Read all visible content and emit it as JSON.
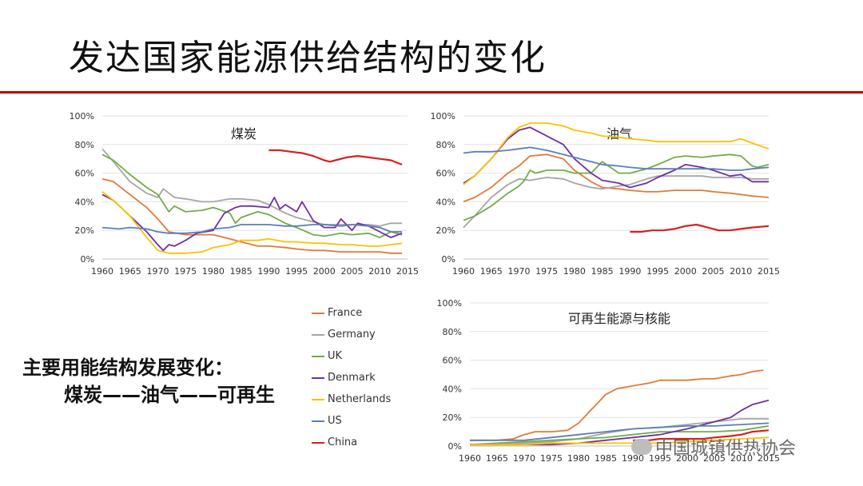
{
  "title": "发达国家能源供给结构的变化",
  "summary": {
    "line1": "主要用能结构发展变化：",
    "line2": "煤炭——油气——可再生"
  },
  "watermark_text": "中国城镇供热协会",
  "colors": {
    "France": "#e07b39",
    "Germany": "#a5a5a5",
    "UK": "#70ad47",
    "Denmark": "#7030a0",
    "Netherlands": "#ffc000",
    "US": "#5b7fb8",
    "China": "#d62020"
  },
  "legend": [
    "France",
    "Germany",
    "UK",
    "Denmark",
    "Netherlands",
    "US",
    "China"
  ],
  "chart_data": [
    {
      "type": "line",
      "title": "煤炭",
      "ylim": [
        0,
        100
      ],
      "y_ticks": [
        "0%",
        "20%",
        "40%",
        "60%",
        "80%",
        "100%"
      ],
      "x_ticks": [
        "1960",
        "1965",
        "1970",
        "1975",
        "1980",
        "1985",
        "1990",
        "1995",
        "2000",
        "2005",
        "2010",
        "2015"
      ],
      "xlim": [
        1960,
        2015
      ],
      "series": [
        {
          "name": "France",
          "x": [
            1960,
            1962,
            1965,
            1968,
            1970,
            1972,
            1975,
            1978,
            1980,
            1983,
            1985,
            1988,
            1990,
            1993,
            1995,
            1998,
            2000,
            2003,
            2005,
            2008,
            2010,
            2012,
            2014
          ],
          "values": [
            56,
            54,
            45,
            36,
            28,
            19,
            17,
            17,
            17,
            14,
            12,
            9,
            9,
            8,
            7,
            6,
            6,
            5,
            5,
            5,
            5,
            4,
            4
          ]
        },
        {
          "name": "Germany",
          "x": [
            1960,
            1962,
            1965,
            1968,
            1970,
            1971,
            1973,
            1975,
            1978,
            1980,
            1983,
            1985,
            1988,
            1990,
            1993,
            1995,
            1998,
            2000,
            2003,
            2005,
            2008,
            2010,
            2012,
            2014
          ],
          "values": [
            77,
            68,
            54,
            46,
            43,
            49,
            43,
            42,
            40,
            40,
            42,
            42,
            41,
            38,
            32,
            29,
            26,
            24,
            24,
            24,
            24,
            23,
            25,
            25
          ]
        },
        {
          "name": "UK",
          "x": [
            1960,
            1962,
            1965,
            1968,
            1970,
            1972,
            1973,
            1975,
            1978,
            1980,
            1983,
            1984,
            1985,
            1988,
            1990,
            1993,
            1995,
            1998,
            2000,
            2003,
            2005,
            2008,
            2010,
            2012,
            2014
          ],
          "values": [
            73,
            69,
            59,
            50,
            45,
            33,
            37,
            33,
            34,
            36,
            32,
            25,
            29,
            33,
            31,
            25,
            22,
            17,
            16,
            18,
            17,
            18,
            15,
            19,
            17
          ]
        },
        {
          "name": "Denmark",
          "x": [
            1960,
            1962,
            1965,
            1968,
            1970,
            1971,
            1972,
            1973,
            1975,
            1977,
            1980,
            1982,
            1984,
            1985,
            1987,
            1990,
            1991,
            1992,
            1993,
            1995,
            1996,
            1998,
            2000,
            2002,
            2003,
            2005,
            2006,
            2008,
            2010,
            2012,
            2014
          ],
          "values": [
            45,
            41,
            30,
            19,
            10,
            6,
            10,
            9,
            13,
            18,
            20,
            32,
            36,
            37,
            37,
            36,
            43,
            35,
            38,
            33,
            40,
            27,
            22,
            22,
            28,
            20,
            25,
            23,
            19,
            15,
            18
          ]
        },
        {
          "name": "Netherlands",
          "x": [
            1960,
            1962,
            1965,
            1968,
            1970,
            1972,
            1975,
            1978,
            1980,
            1983,
            1985,
            1988,
            1990,
            1993,
            1995,
            1998,
            2000,
            2003,
            2005,
            2008,
            2010,
            2012,
            2014
          ],
          "values": [
            47,
            41,
            30,
            15,
            6,
            4,
            4,
            5,
            8,
            10,
            13,
            13,
            14,
            12,
            12,
            11,
            11,
            10,
            10,
            9,
            9,
            10,
            11
          ]
        },
        {
          "name": "US",
          "x": [
            1960,
            1963,
            1965,
            1968,
            1970,
            1972,
            1975,
            1978,
            1980,
            1983,
            1985,
            1988,
            1990,
            1993,
            1995,
            1998,
            2000,
            2003,
            2005,
            2008,
            2010,
            2012,
            2014
          ],
          "values": [
            22,
            21,
            22,
            21,
            19,
            18,
            18,
            19,
            21,
            22,
            24,
            24,
            24,
            23,
            23,
            24,
            24,
            23,
            24,
            23,
            22,
            19,
            19
          ]
        },
        {
          "name": "China",
          "x": [
            1990,
            1992,
            1994,
            1996,
            1998,
            2000,
            2001,
            2002,
            2004,
            2006,
            2008,
            2010,
            2012,
            2014
          ],
          "values": [
            76,
            76,
            75,
            74,
            72,
            69,
            68,
            69,
            71,
            72,
            71,
            70,
            69,
            66
          ]
        }
      ]
    },
    {
      "type": "line",
      "title": "油气",
      "ylim": [
        0,
        100
      ],
      "y_ticks": [
        "0%",
        "20%",
        "40%",
        "60%",
        "80%",
        "100%"
      ],
      "x_ticks": [
        "1960",
        "1965",
        "1970",
        "1975",
        "1980",
        "1985",
        "1990",
        "1995",
        "2000",
        "2005",
        "2010",
        "2015"
      ],
      "xlim": [
        1960,
        2015
      ],
      "series": [
        {
          "name": "France",
          "x": [
            1960,
            1962,
            1965,
            1968,
            1970,
            1972,
            1975,
            1978,
            1980,
            1983,
            1985,
            1988,
            1990,
            1993,
            1995,
            1998,
            2000,
            2003,
            2005,
            2008,
            2010,
            2012,
            2015
          ],
          "values": [
            40,
            43,
            50,
            60,
            65,
            72,
            73,
            70,
            62,
            54,
            50,
            49,
            48,
            47,
            47,
            48,
            48,
            48,
            47,
            46,
            45,
            44,
            43
          ]
        },
        {
          "name": "Germany",
          "x": [
            1960,
            1962,
            1965,
            1968,
            1970,
            1972,
            1975,
            1978,
            1980,
            1983,
            1985,
            1988,
            1990,
            1993,
            1995,
            1998,
            2000,
            2003,
            2005,
            2008,
            2010,
            2012,
            2015
          ],
          "values": [
            22,
            30,
            43,
            52,
            56,
            55,
            57,
            56,
            53,
            50,
            49,
            51,
            52,
            56,
            58,
            58,
            58,
            58,
            57,
            57,
            57,
            56,
            56
          ]
        },
        {
          "name": "UK",
          "x": [
            1960,
            1962,
            1965,
            1968,
            1970,
            1971,
            1972,
            1973,
            1975,
            1978,
            1980,
            1983,
            1985,
            1988,
            1990,
            1993,
            1995,
            1998,
            2000,
            2003,
            2005,
            2008,
            2010,
            2012,
            2013,
            2015
          ],
          "values": [
            27,
            30,
            37,
            46,
            51,
            55,
            62,
            60,
            62,
            62,
            60,
            60,
            68,
            60,
            60,
            63,
            66,
            71,
            72,
            71,
            72,
            73,
            72,
            65,
            64,
            66
          ]
        },
        {
          "name": "Denmark",
          "x": [
            1960,
            1962,
            1965,
            1968,
            1970,
            1972,
            1975,
            1978,
            1980,
            1983,
            1985,
            1988,
            1990,
            1993,
            1995,
            1998,
            2000,
            2003,
            2005,
            2008,
            2010,
            2012,
            2015
          ],
          "values": [
            53,
            58,
            70,
            84,
            90,
            92,
            86,
            80,
            70,
            60,
            55,
            53,
            50,
            53,
            57,
            62,
            66,
            64,
            62,
            58,
            59,
            54,
            54
          ]
        },
        {
          "name": "Netherlands",
          "x": [
            1960,
            1962,
            1965,
            1968,
            1970,
            1972,
            1975,
            1978,
            1980,
            1983,
            1985,
            1988,
            1990,
            1993,
            1995,
            1998,
            2000,
            2003,
            2005,
            2008,
            2010,
            2012,
            2015
          ],
          "values": [
            52,
            58,
            70,
            85,
            92,
            95,
            95,
            93,
            90,
            88,
            86,
            85,
            84,
            83,
            82,
            82,
            82,
            82,
            82,
            82,
            84,
            81,
            77
          ]
        },
        {
          "name": "US",
          "x": [
            1960,
            1962,
            1965,
            1968,
            1970,
            1972,
            1975,
            1978,
            1980,
            1983,
            1985,
            1988,
            1990,
            1993,
            1995,
            1998,
            2000,
            2003,
            2005,
            2008,
            2010,
            2012,
            2015
          ],
          "values": [
            74,
            75,
            75,
            76,
            77,
            78,
            76,
            73,
            71,
            68,
            66,
            65,
            64,
            63,
            63,
            63,
            63,
            63,
            63,
            62,
            62,
            63,
            64
          ]
        },
        {
          "name": "China",
          "x": [
            1990,
            1992,
            1994,
            1996,
            1998,
            2000,
            2002,
            2004,
            2006,
            2008,
            2010,
            2012,
            2015
          ],
          "values": [
            19,
            19,
            20,
            20,
            21,
            23,
            24,
            22,
            20,
            20,
            21,
            22,
            23
          ]
        }
      ]
    },
    {
      "type": "line",
      "title": "可再生能源与核能",
      "ylim": [
        0,
        100
      ],
      "y_ticks": [
        "0%",
        "20%",
        "40%",
        "60%",
        "80%",
        "100%"
      ],
      "x_ticks": [
        "1960",
        "1965",
        "1970",
        "1975",
        "1980",
        "1985",
        "1990",
        "1995",
        "2000",
        "2005",
        "2010",
        "2015"
      ],
      "xlim": [
        1960,
        2015
      ],
      "series": [
        {
          "name": "France",
          "x": [
            1960,
            1963,
            1965,
            1968,
            1970,
            1972,
            1975,
            1978,
            1980,
            1982,
            1985,
            1987,
            1990,
            1993,
            1995,
            1998,
            2000,
            2003,
            2005,
            2008,
            2010,
            2012,
            2014
          ],
          "values": [
            4,
            4,
            4,
            5,
            8,
            10,
            10,
            11,
            16,
            24,
            36,
            40,
            42,
            44,
            46,
            46,
            46,
            47,
            47,
            49,
            50,
            52,
            53
          ]
        },
        {
          "name": "Germany",
          "x": [
            1960,
            1965,
            1970,
            1975,
            1980,
            1985,
            1990,
            1995,
            2000,
            2005,
            2010,
            2015
          ],
          "values": [
            1,
            1,
            2,
            3,
            5,
            9,
            12,
            13,
            15,
            17,
            19,
            19
          ]
        },
        {
          "name": "UK",
          "x": [
            1960,
            1965,
            1970,
            1975,
            1980,
            1985,
            1990,
            1995,
            2000,
            2005,
            2010,
            2015
          ],
          "values": [
            1,
            2,
            3,
            4,
            5,
            6,
            8,
            10,
            10,
            10,
            11,
            14
          ]
        },
        {
          "name": "Denmark",
          "x": [
            1960,
            1970,
            1975,
            1980,
            1985,
            1990,
            1995,
            2000,
            2005,
            2008,
            2010,
            2012,
            2015
          ],
          "values": [
            1,
            1,
            1,
            2,
            4,
            6,
            8,
            12,
            17,
            20,
            25,
            29,
            32
          ]
        },
        {
          "name": "Netherlands",
          "x": [
            1960,
            1965,
            1970,
            1975,
            1980,
            1985,
            1990,
            1995,
            2000,
            2005,
            2010,
            2015
          ],
          "values": [
            1,
            1,
            1,
            2,
            2,
            2,
            2,
            2,
            3,
            4,
            5,
            6
          ]
        },
        {
          "name": "US",
          "x": [
            1960,
            1965,
            1970,
            1975,
            1980,
            1985,
            1990,
            1995,
            2000,
            2005,
            2010,
            2015
          ],
          "values": [
            4,
            4,
            4,
            6,
            8,
            10,
            12,
            13,
            14,
            14,
            15,
            16
          ]
        },
        {
          "name": "China",
          "x": [
            1990,
            1993,
            1995,
            1998,
            2000,
            2003,
            2005,
            2008,
            2010,
            2012,
            2015
          ],
          "values": [
            4,
            4,
            5,
            5,
            5,
            5,
            6,
            7,
            8,
            10,
            11
          ]
        }
      ]
    }
  ]
}
